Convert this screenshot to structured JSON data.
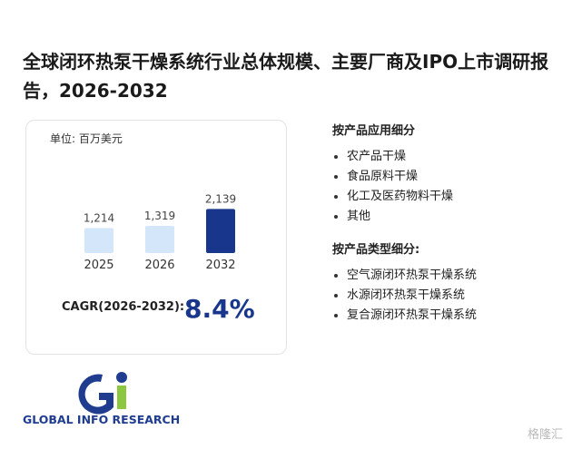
{
  "title": "全球闭环热泵干燥系统行业总体规模、主要厂商及IPO上市调研报告，2026-2032",
  "chart_data": {
    "type": "bar",
    "subtitle": "单位: 百万美元",
    "categories": [
      "2025",
      "2026",
      "2032"
    ],
    "values": [
      1214,
      1319,
      2139
    ],
    "value_labels": [
      "1,214",
      "1,319",
      "2,139"
    ],
    "colors": [
      "#d4e6f9",
      "#d4e6f9",
      "#17368c"
    ],
    "ylim": [
      0,
      2200
    ]
  },
  "cagr": {
    "label": "CAGR(2026-2032):",
    "value": "8.4%"
  },
  "segments": [
    {
      "heading": "按产品应用细分",
      "items": [
        "农产品干燥",
        "食品原料干燥",
        "化工及医药物料干燥",
        "其他"
      ]
    },
    {
      "heading": "按产品类型细分:",
      "items": [
        "空气源闭环热泵干燥系统",
        "水源闭环热泵干燥系统",
        "复合源闭环热泵干燥系统"
      ]
    }
  ],
  "logo": "GLOBAL INFO RESEARCH",
  "watermark": "格隆汇"
}
